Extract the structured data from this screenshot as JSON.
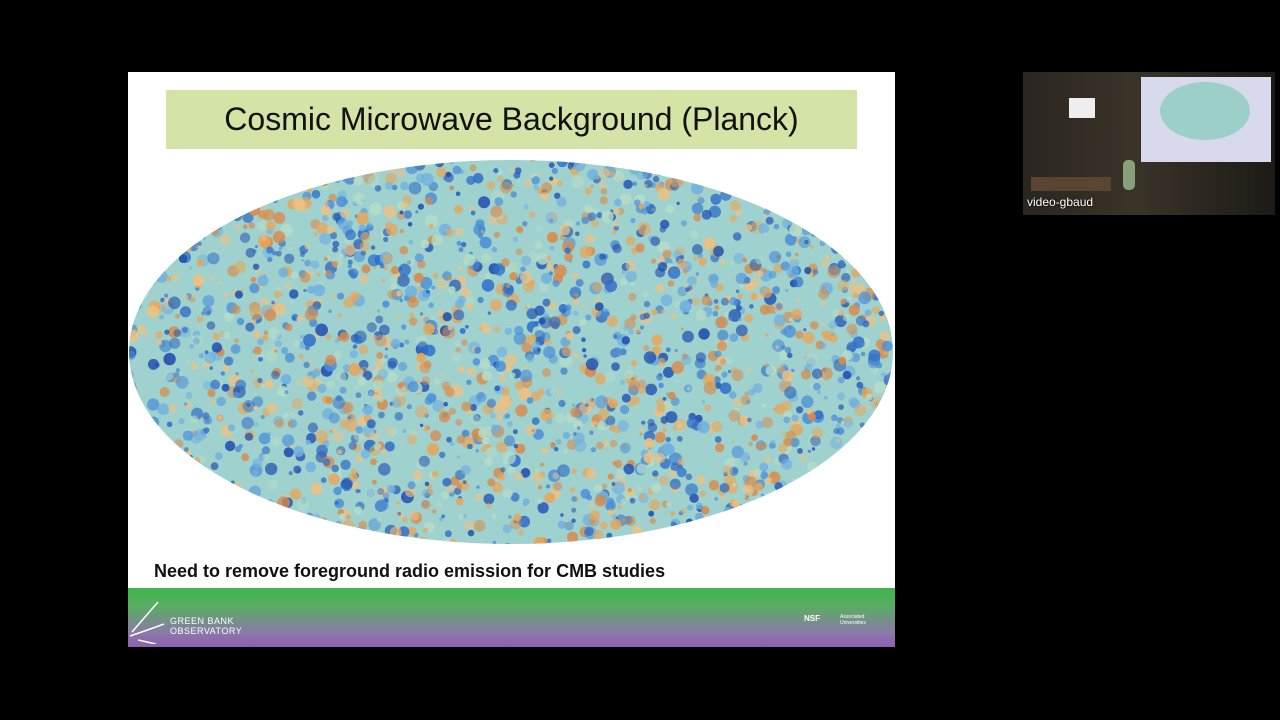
{
  "slide": {
    "title": "Cosmic Microwave Background (Planck)",
    "caption": "Need to remove foreground radio emission for CMB studies",
    "logo": {
      "line1": "GREEN BANK",
      "line2": "OBSERVATORY"
    },
    "partner_logos": [
      "NSF",
      "Associated Universities"
    ]
  },
  "participant": {
    "name": "video-gbaud"
  }
}
